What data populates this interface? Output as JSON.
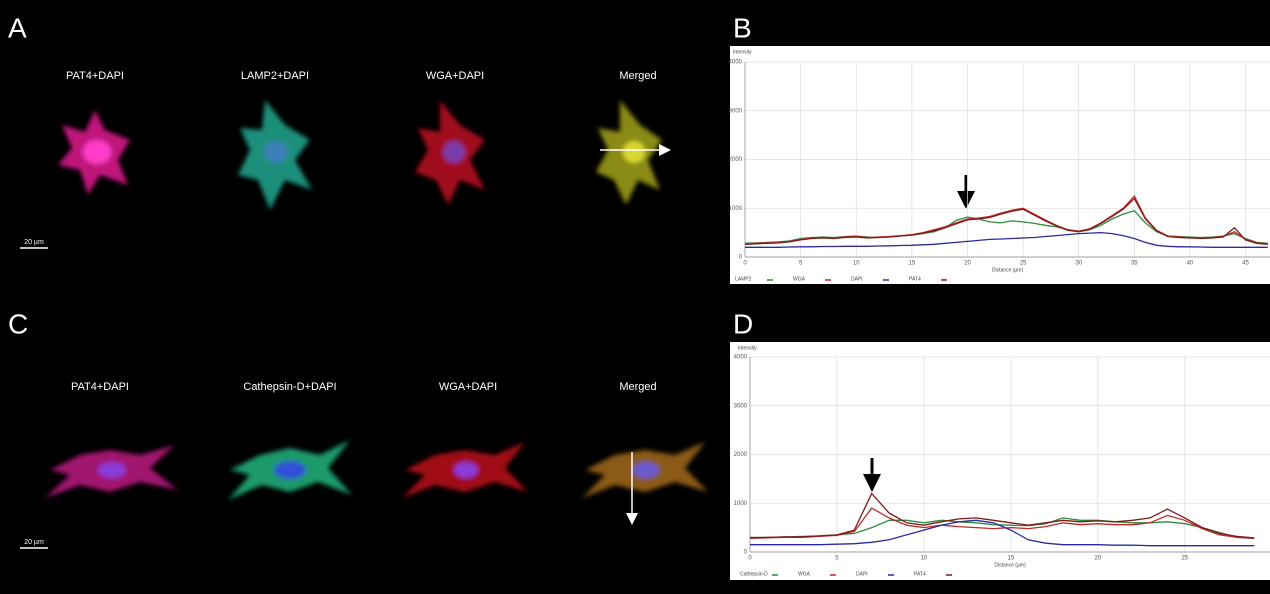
{
  "panels": {
    "a": "A",
    "b": "B",
    "c": "C",
    "d": "D"
  },
  "images_top": {
    "labels": [
      "PAT4+DAPI",
      "LAMP2+DAPI",
      "WGA+DAPI",
      "Merged"
    ],
    "scale_bar": "20 µm"
  },
  "images_bottom": {
    "labels": [
      "PAT4+DAPI",
      "Cathepsin-D+DAPI",
      "WGA+DAPI",
      "Merged"
    ],
    "scale_bar": "20 µm"
  },
  "chart_data": [
    {
      "type": "line",
      "ylabel": "Intensity",
      "xlabel": "Distance (µm)",
      "x": [
        0,
        1,
        2,
        3,
        4,
        5,
        6,
        7,
        8,
        9,
        10,
        11,
        12,
        13,
        14,
        15,
        16,
        17,
        18,
        19,
        20,
        21,
        22,
        23,
        24,
        25,
        26,
        27,
        28,
        29,
        30,
        31,
        32,
        33,
        34,
        35,
        36,
        37,
        38,
        39,
        40,
        41,
        42,
        43,
        44,
        45,
        46,
        47
      ],
      "xlim": [
        0,
        47.2
      ],
      "xticks": [
        0,
        5,
        10,
        15,
        20,
        25,
        30,
        35,
        40,
        45
      ],
      "ylim": [
        0,
        4000
      ],
      "yticks": [
        0,
        1000,
        2000,
        3000,
        4000
      ],
      "grid": true,
      "legend": "bottom",
      "series": [
        {
          "name": "LAMP2",
          "color": "#2e8b3e",
          "values": [
            280,
            290,
            300,
            310,
            330,
            380,
            400,
            410,
            400,
            420,
            430,
            410,
            400,
            420,
            430,
            450,
            480,
            520,
            600,
            750,
            820,
            780,
            720,
            700,
            740,
            720,
            690,
            650,
            620,
            560,
            520,
            560,
            650,
            780,
            880,
            950,
            700,
            520,
            430,
            420,
            410,
            400,
            410,
            430,
            480,
            380,
            300,
            280
          ]
        },
        {
          "name": "WGA",
          "color": "#c0282a",
          "values": [
            270,
            280,
            290,
            300,
            320,
            360,
            390,
            400,
            390,
            410,
            420,
            400,
            410,
            420,
            440,
            460,
            500,
            560,
            620,
            700,
            780,
            800,
            830,
            900,
            960,
            1000,
            880,
            760,
            650,
            560,
            530,
            580,
            700,
            850,
            1000,
            1250,
            800,
            550,
            430,
            410,
            400,
            390,
            400,
            420,
            520,
            360,
            290,
            270
          ]
        },
        {
          "name": "DAPI",
          "color": "#2b2b9c",
          "values": [
            200,
            200,
            200,
            200,
            205,
            210,
            210,
            215,
            215,
            220,
            220,
            220,
            225,
            230,
            235,
            240,
            250,
            260,
            280,
            300,
            320,
            340,
            360,
            370,
            380,
            390,
            400,
            420,
            440,
            460,
            480,
            490,
            500,
            480,
            440,
            380,
            300,
            240,
            220,
            210,
            210,
            205,
            200,
            200,
            200,
            200,
            200,
            200
          ]
        },
        {
          "name": "PAT4",
          "color": "#7e1a1a",
          "values": [
            260,
            270,
            280,
            290,
            310,
            350,
            380,
            390,
            380,
            400,
            410,
            390,
            400,
            410,
            430,
            450,
            490,
            540,
            600,
            680,
            760,
            780,
            810,
            880,
            940,
            980,
            860,
            740,
            640,
            550,
            520,
            570,
            690,
            830,
            980,
            1200,
            780,
            540,
            420,
            400,
            390,
            380,
            390,
            410,
            600,
            350,
            280,
            260
          ]
        }
      ]
    },
    {
      "type": "line",
      "ylabel": "Intensity",
      "xlabel": "Distance (µm)",
      "x": [
        0,
        1,
        2,
        3,
        4,
        5,
        6,
        7,
        8,
        9,
        10,
        11,
        12,
        13,
        14,
        15,
        16,
        17,
        18,
        19,
        20,
        21,
        22,
        23,
        24,
        25,
        26,
        27,
        28,
        29
      ],
      "xlim": [
        0,
        29.9
      ],
      "xticks": [
        0,
        5,
        10,
        15,
        20,
        25
      ],
      "ylim": [
        0,
        4000
      ],
      "yticks": [
        0,
        1000,
        2000,
        3000,
        4000
      ],
      "grid": true,
      "legend": "bottom",
      "series": [
        {
          "name": "Cathepsin-D",
          "color": "#2e8b3e",
          "values": [
            300,
            300,
            310,
            320,
            330,
            350,
            380,
            500,
            650,
            650,
            600,
            650,
            620,
            600,
            560,
            550,
            540,
            580,
            700,
            650,
            650,
            620,
            600,
            600,
            620,
            580,
            500,
            400,
            300,
            280
          ]
        },
        {
          "name": "WGA",
          "color": "#c0282a",
          "values": [
            280,
            290,
            300,
            300,
            320,
            340,
            420,
            900,
            700,
            550,
            500,
            550,
            520,
            500,
            480,
            500,
            480,
            520,
            600,
            560,
            580,
            560,
            560,
            600,
            750,
            650,
            480,
            350,
            300,
            280
          ]
        },
        {
          "name": "DAPI",
          "color": "#2b2b9c",
          "values": [
            150,
            150,
            150,
            150,
            150,
            160,
            170,
            200,
            250,
            350,
            450,
            550,
            620,
            650,
            600,
            450,
            250,
            180,
            150,
            150,
            150,
            140,
            140,
            130,
            130,
            130,
            130,
            130,
            130,
            130
          ]
        },
        {
          "name": "PAT4",
          "color": "#7e1a1a",
          "values": [
            290,
            300,
            310,
            310,
            330,
            350,
            450,
            1200,
            800,
            600,
            550,
            620,
            680,
            700,
            650,
            600,
            550,
            600,
            650,
            620,
            640,
            620,
            650,
            700,
            880,
            700,
            500,
            380,
            320,
            290
          ]
        }
      ]
    }
  ]
}
